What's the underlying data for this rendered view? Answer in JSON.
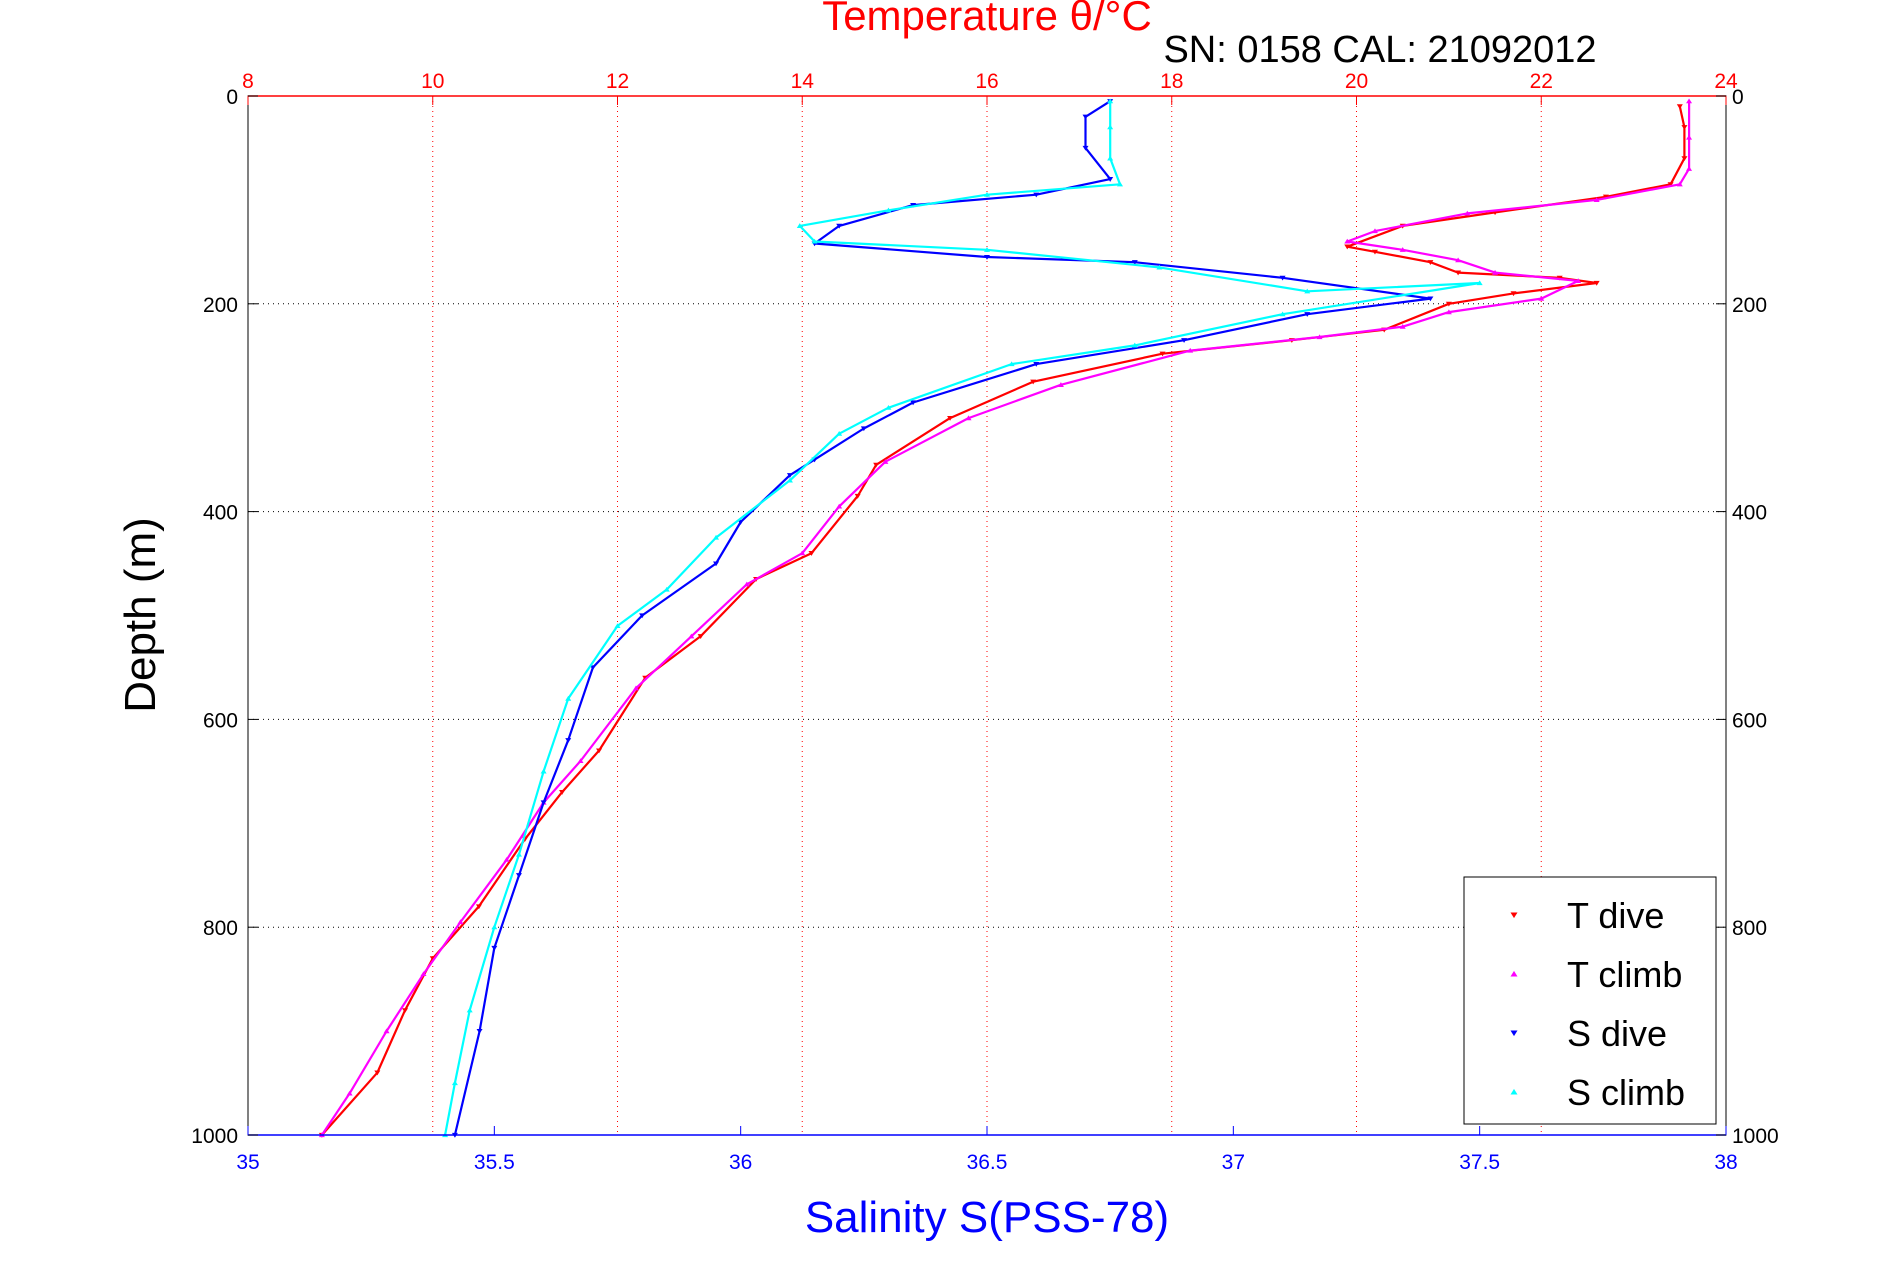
{
  "chart_data": {
    "type": "scatter",
    "subtitle": "SN: 0158  CAL: 21092012",
    "ylabel": "Depth (m)",
    "ylim": [
      0,
      1000
    ],
    "y_reversed": true,
    "yticks": [
      0,
      200,
      400,
      600,
      800,
      1000
    ],
    "axes": {
      "top": {
        "label": "Temperature θ/°C",
        "lim": [
          8,
          24
        ],
        "ticks": [
          8,
          10,
          12,
          14,
          16,
          18,
          20,
          22,
          24
        ],
        "color": "#ff0000"
      },
      "bottom": {
        "label": "Salinity S(PSS-78)",
        "lim": [
          35,
          38
        ],
        "ticks": [
          "35",
          "35.5",
          "36",
          "36.5",
          "37",
          "37.5",
          "38"
        ],
        "color": "#0000ff"
      }
    },
    "grid": "vertical dotted lines at temperature ticks; horizontal dotted lines at depth ticks",
    "legend_position": "bottom-right",
    "series": [
      {
        "name": "T dive",
        "axis": "top",
        "color": "#ff0000",
        "marker": "triangle-down",
        "points": [
          [
            23.5,
            10
          ],
          [
            23.55,
            30
          ],
          [
            23.55,
            60
          ],
          [
            23.4,
            85
          ],
          [
            22.7,
            97
          ],
          [
            21.5,
            112
          ],
          [
            20.5,
            125
          ],
          [
            19.9,
            145
          ],
          [
            20.2,
            150
          ],
          [
            20.8,
            160
          ],
          [
            21.1,
            170
          ],
          [
            22.2,
            175
          ],
          [
            22.6,
            180
          ],
          [
            21.7,
            190
          ],
          [
            21.0,
            200
          ],
          [
            20.3,
            225
          ],
          [
            19.3,
            235
          ],
          [
            17.9,
            248
          ],
          [
            16.5,
            275
          ],
          [
            15.6,
            310
          ],
          [
            14.8,
            355
          ],
          [
            14.6,
            385
          ],
          [
            14.1,
            440
          ],
          [
            13.5,
            465
          ],
          [
            12.9,
            520
          ],
          [
            12.3,
            560
          ],
          [
            11.8,
            630
          ],
          [
            11.4,
            670
          ],
          [
            11.0,
            715
          ],
          [
            10.5,
            780
          ],
          [
            10.0,
            830
          ],
          [
            9.7,
            880
          ],
          [
            9.4,
            940
          ],
          [
            8.8,
            1000
          ]
        ]
      },
      {
        "name": "T climb",
        "axis": "top",
        "color": "#ff00ff",
        "marker": "triangle-up",
        "points": [
          [
            23.6,
            5
          ],
          [
            23.6,
            40
          ],
          [
            23.6,
            70
          ],
          [
            23.5,
            85
          ],
          [
            22.6,
            100
          ],
          [
            21.2,
            113
          ],
          [
            20.2,
            130
          ],
          [
            19.9,
            140
          ],
          [
            20.5,
            148
          ],
          [
            21.1,
            158
          ],
          [
            21.5,
            170
          ],
          [
            22.4,
            178
          ],
          [
            22.0,
            195
          ],
          [
            21.0,
            208
          ],
          [
            20.5,
            222
          ],
          [
            19.6,
            232
          ],
          [
            18.2,
            245
          ],
          [
            16.8,
            278
          ],
          [
            15.8,
            310
          ],
          [
            14.9,
            352
          ],
          [
            14.4,
            395
          ],
          [
            14.0,
            440
          ],
          [
            13.4,
            470
          ],
          [
            12.8,
            520
          ],
          [
            12.2,
            570
          ],
          [
            11.6,
            640
          ],
          [
            11.2,
            680
          ],
          [
            10.8,
            735
          ],
          [
            10.3,
            795
          ],
          [
            9.9,
            845
          ],
          [
            9.5,
            900
          ],
          [
            9.1,
            960
          ],
          [
            8.8,
            1000
          ]
        ]
      },
      {
        "name": "S dive",
        "axis": "bottom",
        "color": "#0000ff",
        "marker": "triangle-down",
        "points": [
          [
            36.75,
            5
          ],
          [
            36.7,
            20
          ],
          [
            36.7,
            50
          ],
          [
            36.75,
            80
          ],
          [
            36.6,
            95
          ],
          [
            36.35,
            105
          ],
          [
            36.2,
            125
          ],
          [
            36.15,
            142
          ],
          [
            36.5,
            155
          ],
          [
            36.8,
            160
          ],
          [
            37.1,
            175
          ],
          [
            37.4,
            195
          ],
          [
            37.15,
            210
          ],
          [
            36.9,
            235
          ],
          [
            36.6,
            258
          ],
          [
            36.35,
            295
          ],
          [
            36.25,
            320
          ],
          [
            36.15,
            350
          ],
          [
            36.1,
            365
          ],
          [
            36.0,
            410
          ],
          [
            35.95,
            450
          ],
          [
            35.8,
            500
          ],
          [
            35.7,
            550
          ],
          [
            35.65,
            620
          ],
          [
            35.6,
            680
          ],
          [
            35.55,
            750
          ],
          [
            35.5,
            820
          ],
          [
            35.47,
            900
          ],
          [
            35.42,
            1000
          ]
        ]
      },
      {
        "name": "S climb",
        "axis": "bottom",
        "color": "#00ffff",
        "marker": "triangle-up",
        "points": [
          [
            36.75,
            5
          ],
          [
            36.75,
            30
          ],
          [
            36.75,
            60
          ],
          [
            36.77,
            85
          ],
          [
            36.5,
            95
          ],
          [
            36.3,
            110
          ],
          [
            36.12,
            125
          ],
          [
            36.15,
            140
          ],
          [
            36.5,
            148
          ],
          [
            36.85,
            165
          ],
          [
            37.15,
            188
          ],
          [
            37.5,
            180
          ],
          [
            37.1,
            210
          ],
          [
            36.8,
            240
          ],
          [
            36.55,
            258
          ],
          [
            36.3,
            300
          ],
          [
            36.2,
            325
          ],
          [
            36.1,
            370
          ],
          [
            35.95,
            425
          ],
          [
            35.85,
            475
          ],
          [
            35.75,
            510
          ],
          [
            35.65,
            580
          ],
          [
            35.6,
            650
          ],
          [
            35.55,
            730
          ],
          [
            35.5,
            800
          ],
          [
            35.45,
            880
          ],
          [
            35.42,
            950
          ],
          [
            35.4,
            1000
          ]
        ]
      }
    ]
  }
}
